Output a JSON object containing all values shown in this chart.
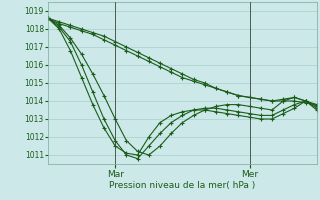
{
  "xlabel": "Pression niveau de la mer( hPa )",
  "ylim": [
    1010.5,
    1019.5
  ],
  "yticks": [
    1011,
    1012,
    1013,
    1014,
    1015,
    1016,
    1017,
    1018,
    1019
  ],
  "background_color": "#cce8e8",
  "line_color": "#1a5c1a",
  "grid_color": "#a8cece",
  "mar_x": 48,
  "mer_x": 144,
  "xlim": [
    0,
    192
  ],
  "series": [
    [
      1018.6,
      1018.3,
      1018.1,
      1017.9,
      1017.7,
      1017.4,
      1017.1,
      1016.8,
      1016.5,
      1016.2,
      1015.9,
      1015.6,
      1015.3,
      1015.1,
      1014.9,
      1014.7,
      1014.5,
      1014.3,
      1014.2,
      1014.1,
      1014.0,
      1014.0,
      1014.0,
      1013.9,
      1013.8
    ],
    [
      1018.6,
      1018.4,
      1018.2,
      1018.0,
      1017.8,
      1017.6,
      1017.3,
      1017.0,
      1016.7,
      1016.4,
      1016.1,
      1015.8,
      1015.5,
      1015.2,
      1015.0,
      1014.7,
      1014.5,
      1014.3,
      1014.2,
      1014.1,
      1014.0,
      1014.1,
      1014.2,
      1014.0,
      1013.7
    ],
    [
      1018.6,
      1018.2,
      1017.5,
      1016.6,
      1015.5,
      1014.3,
      1013.0,
      1011.8,
      1011.2,
      1011.0,
      1011.5,
      1012.2,
      1012.8,
      1013.2,
      1013.5,
      1013.7,
      1013.8,
      1013.8,
      1013.7,
      1013.6,
      1013.5,
      1014.0,
      1014.2,
      1014.0,
      1013.8
    ],
    [
      1018.6,
      1018.1,
      1017.3,
      1016.0,
      1014.5,
      1013.0,
      1011.8,
      1011.0,
      1010.8,
      1011.5,
      1012.2,
      1012.8,
      1013.2,
      1013.5,
      1013.6,
      1013.6,
      1013.5,
      1013.4,
      1013.3,
      1013.2,
      1013.2,
      1013.5,
      1013.8,
      1014.0,
      1013.6
    ],
    [
      1018.6,
      1018.0,
      1016.8,
      1015.3,
      1013.8,
      1012.5,
      1011.5,
      1011.1,
      1011.0,
      1012.0,
      1012.8,
      1013.2,
      1013.4,
      1013.5,
      1013.5,
      1013.4,
      1013.3,
      1013.2,
      1013.1,
      1013.0,
      1013.0,
      1013.3,
      1013.6,
      1014.0,
      1013.5
    ]
  ],
  "x_pts": [
    0,
    8,
    16,
    24,
    32,
    40,
    48,
    56,
    64,
    72,
    80,
    88,
    96,
    104,
    112,
    120,
    128,
    136,
    144,
    152,
    160,
    168,
    176,
    184,
    192
  ]
}
